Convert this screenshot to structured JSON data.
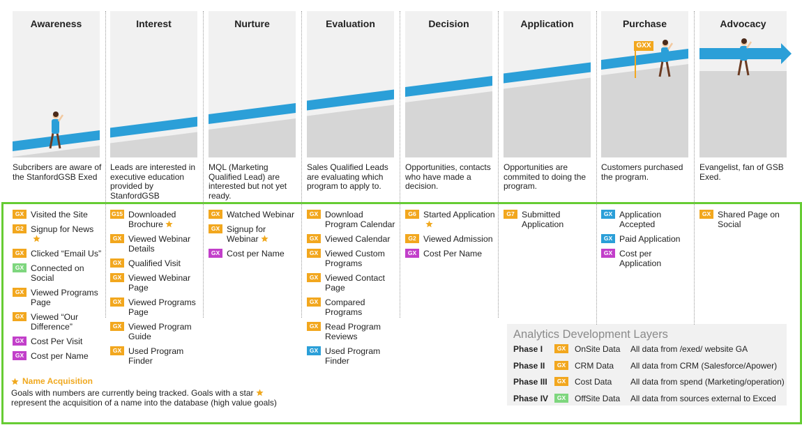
{
  "stages": [
    {
      "title": "Awareness",
      "description": "Subcribers are aware of the StanfordGSB Exed",
      "goals": [
        {
          "badge": "GX",
          "color": "#f2a71e",
          "text": "Visited the Site"
        },
        {
          "badge": "G2",
          "color": "#f2a71e",
          "text": "Signup for News",
          "star": true
        },
        {
          "badge": "GX",
          "color": "#f2a71e",
          "text": "Clicked “Email Us”"
        },
        {
          "badge": "GX",
          "color": "#7ed67e",
          "text": "Connected on Social"
        },
        {
          "badge": "GX",
          "color": "#f2a71e",
          "text": "Viewed Programs Page"
        },
        {
          "badge": "GX",
          "color": "#f2a71e",
          "text": "Viewed “Our Difference”"
        },
        {
          "badge": "GX",
          "color": "#c23fca",
          "text": "Cost Per Visit"
        },
        {
          "badge": "GX",
          "color": "#c23fca",
          "text": "Cost per Name"
        }
      ]
    },
    {
      "title": "Interest",
      "description": "Leads are interested in executive education provided by StanfordGSB",
      "goals": [
        {
          "badge": "G15",
          "color": "#f2a71e",
          "text": "Downloaded Brochure",
          "star": true
        },
        {
          "badge": "GX",
          "color": "#f2a71e",
          "text": "Viewed Webinar Details"
        },
        {
          "badge": "GX",
          "color": "#f2a71e",
          "text": "Qualified Visit"
        },
        {
          "badge": "GX",
          "color": "#f2a71e",
          "text": "Viewed Webinar Page"
        },
        {
          "badge": "GX",
          "color": "#f2a71e",
          "text": "Viewed Programs Page"
        },
        {
          "badge": "GX",
          "color": "#f2a71e",
          "text": "Viewed Program Guide"
        },
        {
          "badge": "GX",
          "color": "#f2a71e",
          "text": "Used Program Finder"
        }
      ]
    },
    {
      "title": "Nurture",
      "description": "MQL (Marketing Qualified Lead) are interested but not yet ready.",
      "goals": [
        {
          "badge": "GX",
          "color": "#f2a71e",
          "text": "Watched Webinar"
        },
        {
          "badge": "GX",
          "color": "#f2a71e",
          "text": "Signup for Webinar",
          "star": true
        },
        {
          "badge": "GX",
          "color": "#c23fca",
          "text": "Cost per Name"
        }
      ]
    },
    {
      "title": "Evaluation",
      "description": "Sales Qualified Leads are evaluating which program to apply to.",
      "goals": [
        {
          "badge": "GX",
          "color": "#f2a71e",
          "text": "Download Program Calendar"
        },
        {
          "badge": "GX",
          "color": "#f2a71e",
          "text": "Viewed Calendar"
        },
        {
          "badge": "GX",
          "color": "#f2a71e",
          "text": "Viewed Custom Programs"
        },
        {
          "badge": "GX",
          "color": "#f2a71e",
          "text": "Viewed Contact Page"
        },
        {
          "badge": "GX",
          "color": "#f2a71e",
          "text": "Compared Programs"
        },
        {
          "badge": "GX",
          "color": "#f2a71e",
          "text": "Read Program Reviews"
        },
        {
          "badge": "GX",
          "color": "#2b9fd8",
          "text": "Used Program Finder"
        }
      ]
    },
    {
      "title": "Decision",
      "description": "Opportunities, contacts who have made a decision.",
      "goals": [
        {
          "badge": "G6",
          "color": "#f2a71e",
          "text": "Started Application",
          "star": true
        },
        {
          "badge": "G2",
          "color": "#f2a71e",
          "text": "Viewed Admission"
        },
        {
          "badge": "GX",
          "color": "#c23fca",
          "text": "Cost Per Name"
        }
      ]
    },
    {
      "title": "Application",
      "description": "Opportunities are commited to doing the program.",
      "goals": [
        {
          "badge": "G7",
          "color": "#f2a71e",
          "text": "Submitted Application"
        }
      ]
    },
    {
      "title": "Purchase",
      "description": "Customers purchased the program.",
      "flag": "GXX",
      "goals": [
        {
          "badge": "GX",
          "color": "#2b9fd8",
          "text": "Application Accepted"
        },
        {
          "badge": "GX",
          "color": "#2b9fd8",
          "text": "Paid Application"
        },
        {
          "badge": "GX",
          "color": "#c23fca",
          "text": "Cost per Application"
        }
      ]
    },
    {
      "title": "Advocacy",
      "description": "Evangelist, fan of GSB Exed.",
      "goals": [
        {
          "badge": "GX",
          "color": "#f2a71e",
          "text": "Shared Page on Social"
        }
      ]
    }
  ],
  "legend": {
    "title": "Name Acquisition",
    "note": [
      "Goals with numbers are currently being tracked. Goals with a star",
      "represent the acquisition of a name into the database (high value goals)"
    ]
  },
  "analytics": {
    "title": "Analytics Development Layers",
    "rows": [
      {
        "phase": "Phase I",
        "badge": "GX",
        "color": "#f2a71e",
        "source": "OnSite Data",
        "description": "All data from /exed/ website GA"
      },
      {
        "phase": "Phase II",
        "badge": "GX",
        "color": "#f2a71e",
        "source": "CRM Data",
        "description": "All data from CRM (Salesforce/Apower)"
      },
      {
        "phase": "Phase III",
        "badge": "GX",
        "color": "#f2a71e",
        "source": "Cost Data",
        "description": "All data from spend (Marketing/operation)"
      },
      {
        "phase": "Phase IV",
        "badge": "GX",
        "color": "#7ed67e",
        "source": "OffSite Data",
        "description": "All data from sources external to Exced"
      }
    ]
  }
}
